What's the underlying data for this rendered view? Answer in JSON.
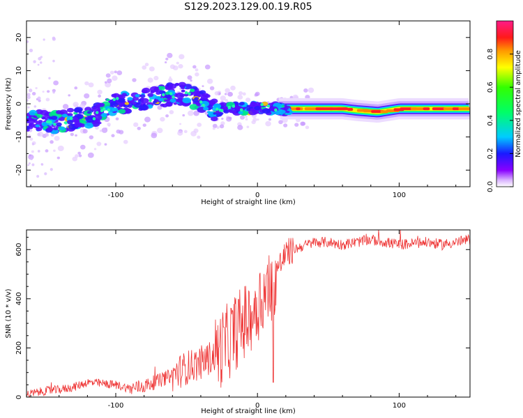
{
  "figure": {
    "title": "S129.2023.129.00.19.R05"
  },
  "colors": {
    "snr_line": "#ee3333",
    "axis": "#000000",
    "background": "#ffffff"
  },
  "chart_data": [
    {
      "type": "heatmap",
      "xlabel": "Height of straight line (km)",
      "ylabel": "Frequency (Hz)",
      "xlim": [
        -163,
        150
      ],
      "ylim": [
        -25,
        25
      ],
      "xticks": [
        -100,
        0,
        100
      ],
      "yticks": [
        -20,
        -10,
        0,
        10,
        20
      ],
      "colorbar": {
        "label": "Normalized spectral amplitude",
        "range": [
          0,
          1
        ],
        "ticks": [
          0.0,
          0.2,
          0.4,
          0.6,
          0.8
        ],
        "colormap": "rainbow (white→purple→blue→cyan→green→yellow→orange→red→magenta)"
      },
      "ridge": [
        {
          "x": -163,
          "y": -5
        },
        {
          "x": -150,
          "y": -5.5
        },
        {
          "x": -135,
          "y": -5
        },
        {
          "x": -120,
          "y": -4.5
        },
        {
          "x": -110,
          "y": -3
        },
        {
          "x": -100,
          "y": 1
        },
        {
          "x": -90,
          "y": 0
        },
        {
          "x": -80,
          "y": 1
        },
        {
          "x": -70,
          "y": 2
        },
        {
          "x": -60,
          "y": 3
        },
        {
          "x": -50,
          "y": 3
        },
        {
          "x": -40,
          "y": 1
        },
        {
          "x": -30,
          "y": -2
        },
        {
          "x": -20,
          "y": -1
        },
        {
          "x": -10,
          "y": -1.5
        },
        {
          "x": 0,
          "y": -1
        },
        {
          "x": 10,
          "y": -1.5
        },
        {
          "x": 20,
          "y": -1.5
        },
        {
          "x": 40,
          "y": -1.5
        },
        {
          "x": 60,
          "y": -1.5
        },
        {
          "x": 70,
          "y": -2
        },
        {
          "x": 85,
          "y": -2.5
        },
        {
          "x": 100,
          "y": -1.5
        },
        {
          "x": 125,
          "y": -1.5
        },
        {
          "x": 150,
          "y": -1.5
        }
      ]
    },
    {
      "type": "line",
      "xlabel": "Height of straight line (km)",
      "ylabel": "SNR (10 * v/v)",
      "xlim": [
        -163,
        150
      ],
      "ylim": [
        0,
        680
      ],
      "xticks": [
        -100,
        0,
        100
      ],
      "yticks": [
        0,
        200,
        400,
        600
      ],
      "series": [
        {
          "x": [
            -163,
            -150,
            -140,
            -130,
            -120,
            -110,
            -100,
            -90,
            -80,
            -70,
            -60,
            -50,
            -40,
            -30,
            -20,
            -15,
            -10,
            -5,
            0,
            5,
            10,
            15,
            20,
            25,
            30,
            40,
            50,
            60,
            70,
            80,
            90,
            100,
            110,
            120,
            130,
            140,
            150
          ],
          "values": [
            10,
            25,
            30,
            40,
            60,
            55,
            50,
            35,
            45,
            65,
            90,
            120,
            140,
            170,
            230,
            270,
            300,
            330,
            380,
            420,
            460,
            530,
            580,
            600,
            610,
            630,
            630,
            620,
            630,
            640,
            630,
            620,
            625,
            630,
            620,
            630,
            640
          ]
        }
      ]
    }
  ]
}
